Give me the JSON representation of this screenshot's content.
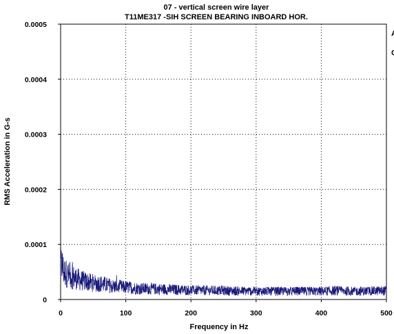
{
  "chart_data": {
    "type": "line",
    "title": "07   - vertical screen wire layer",
    "subtitle": "T11ME317  -SIH    SCREEN BEARING INBOARD HOR.",
    "xlabel": "Frequency in Hz",
    "ylabel": "RMS Acceleration in G-s",
    "xlim": [
      0,
      500
    ],
    "ylim": [
      0,
      0.0005
    ],
    "x_ticks": [
      0,
      100,
      200,
      300,
      400,
      500
    ],
    "x_tick_labels": [
      "0",
      "100",
      "200",
      "300",
      "400",
      "500"
    ],
    "y_ticks": [
      0,
      0.0001,
      0.0002,
      0.0003,
      0.0004,
      0.0005
    ],
    "y_tick_labels": [
      "0",
      "0.0001",
      "0.0002",
      "0.0003",
      "0.0004",
      "0.0005"
    ],
    "grid": true,
    "line_color": "#1a1a7a",
    "series": [
      {
        "x": [
          0,
          2,
          5,
          8,
          12,
          16,
          20,
          30,
          40,
          50,
          60,
          80,
          100,
          120,
          150,
          170,
          200,
          250,
          300,
          350,
          400,
          420,
          450,
          500
        ],
        "values": [
          6e-05,
          6.5e-05,
          5e-05,
          4.8e-05,
          4.4e-05,
          4.1e-05,
          4e-05,
          3.5e-05,
          3.2e-05,
          3e-05,
          2.9e-05,
          2.4e-05,
          2.2e-05,
          2e-05,
          1.9e-05,
          1.8e-05,
          1.7e-05,
          1.6e-05,
          1.5e-05,
          1.5e-05,
          1.5e-05,
          1.6e-05,
          1.5e-05,
          1.6e-05
        ]
      }
    ]
  },
  "edge_glyphs": [
    "A",
    "C"
  ]
}
